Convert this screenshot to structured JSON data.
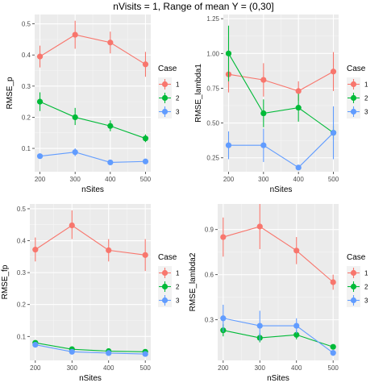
{
  "title": "nVisits = 1, Range of mean Y = (0,30]",
  "colors": {
    "1": "#F8766D",
    "2": "#00BA38",
    "3": "#619CFF"
  },
  "chart_data": [
    {
      "type": "line",
      "xlabel": "nSites",
      "ylabel": "RMSE_p",
      "x": [
        200,
        300,
        400,
        500
      ],
      "ylim": [
        0.025,
        0.53
      ],
      "yticks": [
        "0.1",
        "0.2",
        "0.3",
        "0.4",
        "0.5"
      ],
      "legend_title": "Case",
      "series": [
        {
          "name": "1",
          "values": [
            0.395,
            0.465,
            0.44,
            0.37
          ],
          "lower": [
            0.36,
            0.42,
            0.405,
            0.33
          ],
          "upper": [
            0.43,
            0.51,
            0.475,
            0.41
          ]
        },
        {
          "name": "2",
          "values": [
            0.25,
            0.2,
            0.172,
            0.132
          ],
          "lower": [
            0.22,
            0.175,
            0.155,
            0.12
          ],
          "upper": [
            0.28,
            0.23,
            0.19,
            0.145
          ]
        },
        {
          "name": "3",
          "values": [
            0.075,
            0.088,
            0.055,
            0.058
          ],
          "lower": [
            0.068,
            0.075,
            0.05,
            0.05
          ],
          "upper": [
            0.082,
            0.1,
            0.06,
            0.066
          ]
        }
      ]
    },
    {
      "type": "line",
      "xlabel": "nSites",
      "ylabel": "RMSE_lambda1",
      "x": [
        200,
        300,
        400,
        500
      ],
      "ylim": [
        0.15,
        1.28
      ],
      "yticks": [
        "0.25",
        "0.50",
        "0.75",
        "1.00",
        "1.25"
      ],
      "legend_title": "Case",
      "series": [
        {
          "name": "1",
          "values": [
            0.85,
            0.81,
            0.73,
            0.87
          ],
          "lower": [
            0.72,
            0.69,
            0.66,
            0.73
          ],
          "upper": [
            0.98,
            0.93,
            0.8,
            1.01
          ]
        },
        {
          "name": "2",
          "values": [
            1.0,
            0.57,
            0.61,
            0.43
          ],
          "lower": [
            0.8,
            0.47,
            0.51,
            0.38
          ],
          "upper": [
            1.2,
            0.67,
            0.71,
            0.48
          ]
        },
        {
          "name": "3",
          "values": [
            0.34,
            0.34,
            0.18,
            0.43
          ],
          "lower": [
            0.24,
            0.22,
            0.16,
            0.24
          ],
          "upper": [
            0.44,
            0.46,
            0.2,
            0.62
          ]
        }
      ]
    },
    {
      "type": "line",
      "xlabel": "nSites",
      "ylabel": "RMSE_fp",
      "x": [
        200,
        300,
        400,
        500
      ],
      "ylim": [
        0.025,
        0.515
      ],
      "yticks": [
        "0.1",
        "0.2",
        "0.3",
        "0.4",
        "0.5"
      ],
      "legend_title": "Case",
      "series": [
        {
          "name": "1",
          "values": [
            0.372,
            0.448,
            0.37,
            0.355
          ],
          "lower": [
            0.335,
            0.405,
            0.335,
            0.305
          ],
          "upper": [
            0.41,
            0.495,
            0.405,
            0.405
          ]
        },
        {
          "name": "2",
          "values": [
            0.08,
            0.06,
            0.054,
            0.052
          ],
          "lower": [
            0.074,
            0.055,
            0.05,
            0.048
          ],
          "upper": [
            0.086,
            0.065,
            0.058,
            0.056
          ]
        },
        {
          "name": "3",
          "values": [
            0.074,
            0.052,
            0.048,
            0.045
          ],
          "lower": [
            0.068,
            0.047,
            0.043,
            0.041
          ],
          "upper": [
            0.08,
            0.057,
            0.053,
            0.049
          ]
        }
      ]
    },
    {
      "type": "line",
      "xlabel": "nSites",
      "ylabel": "RMSE_lambda2",
      "x": [
        200,
        300,
        400,
        500
      ],
      "ylim": [
        0.03,
        1.07
      ],
      "yticks": [
        "0.3",
        "0.6",
        "0.9"
      ],
      "legend_title": "Case",
      "series": [
        {
          "name": "1",
          "values": [
            0.85,
            0.92,
            0.76,
            0.55
          ],
          "lower": [
            0.72,
            0.77,
            0.67,
            0.5
          ],
          "upper": [
            0.98,
            1.07,
            0.85,
            0.6
          ]
        },
        {
          "name": "2",
          "values": [
            0.23,
            0.18,
            0.2,
            0.12
          ],
          "lower": [
            0.19,
            0.15,
            0.17,
            0.11
          ],
          "upper": [
            0.27,
            0.21,
            0.23,
            0.13
          ]
        },
        {
          "name": "3",
          "values": [
            0.31,
            0.26,
            0.26,
            0.08
          ],
          "lower": [
            0.22,
            0.16,
            0.21,
            0.06
          ],
          "upper": [
            0.4,
            0.36,
            0.31,
            0.1
          ]
        }
      ]
    }
  ]
}
